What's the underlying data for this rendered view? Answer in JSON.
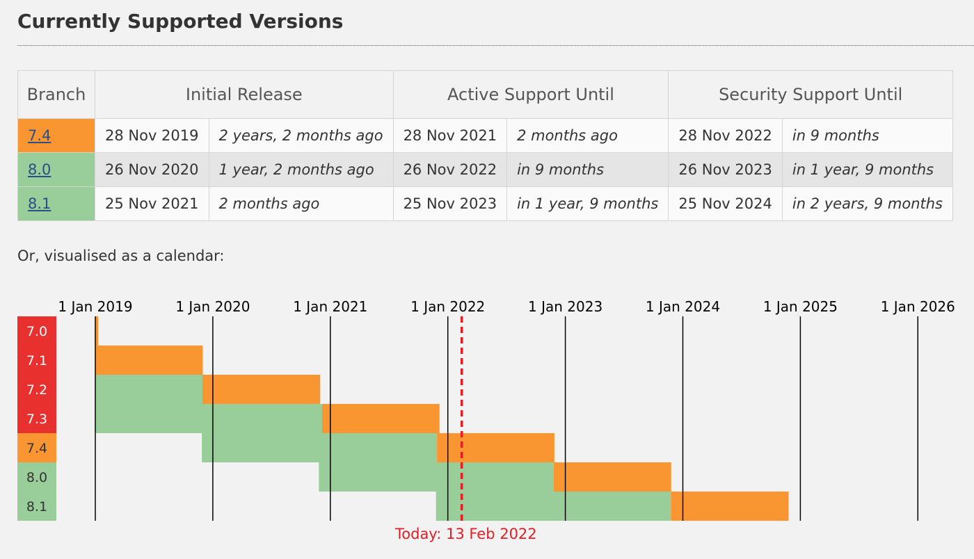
{
  "title": "Currently Supported Versions",
  "table": {
    "headers": [
      "Branch",
      "Initial Release",
      "Active Support Until",
      "Security Support Until"
    ],
    "rows": [
      {
        "branch": "7.4",
        "initial_date": "28 Nov 2019",
        "initial_rel": "2 years, 2 months ago",
        "active_date": "28 Nov 2021",
        "active_rel": "2 months ago",
        "security_date": "28 Nov 2022",
        "security_rel": "in 9 months"
      },
      {
        "branch": "8.0",
        "initial_date": "26 Nov 2020",
        "initial_rel": "1 year, 2 months ago",
        "active_date": "26 Nov 2022",
        "active_rel": "in 9 months",
        "security_date": "26 Nov 2023",
        "security_rel": "in 1 year, 9 months"
      },
      {
        "branch": "8.1",
        "initial_date": "25 Nov 2021",
        "initial_rel": "2 months ago",
        "active_date": "25 Nov 2023",
        "active_rel": "in 1 year, 9 months",
        "security_date": "25 Nov 2024",
        "security_rel": "in 2 years, 9 months"
      }
    ]
  },
  "intro": "Or, visualised as a calendar:",
  "colors": {
    "eol": "#e8302f",
    "security": "#f99632",
    "active": "#99cd99",
    "today": "#e31e24",
    "link": "#2a4f87"
  },
  "calendar": {
    "years": [
      "1 Jan 2019",
      "1 Jan 2020",
      "1 Jan 2021",
      "1 Jan 2022",
      "1 Jan 2023",
      "1 Jan 2024",
      "1 Jan 2025",
      "1 Jan 2026"
    ],
    "branches": [
      {
        "name": "7.0",
        "status": "eol",
        "active_end": null,
        "security_end": "2019-01-10"
      },
      {
        "name": "7.1",
        "status": "eol",
        "active_end": "2018-12-01",
        "security_end": "2019-12-01"
      },
      {
        "name": "7.2",
        "status": "eol",
        "active_end": "2019-11-30",
        "security_end": "2020-11-30"
      },
      {
        "name": "7.3",
        "status": "eol",
        "active_end": "2020-12-06",
        "security_end": "2021-12-06"
      },
      {
        "name": "7.4",
        "status": "security",
        "initial": "2019-11-28",
        "active_end": "2021-11-28",
        "security_end": "2022-11-28"
      },
      {
        "name": "8.0",
        "status": "active",
        "initial": "2020-11-26",
        "active_end": "2022-11-26",
        "security_end": "2023-11-26"
      },
      {
        "name": "8.1",
        "status": "active",
        "initial": "2021-11-25",
        "active_end": "2023-11-25",
        "security_end": "2024-11-25"
      }
    ],
    "today": "2022-02-13",
    "today_label": "Today: 13 Feb 2022"
  }
}
